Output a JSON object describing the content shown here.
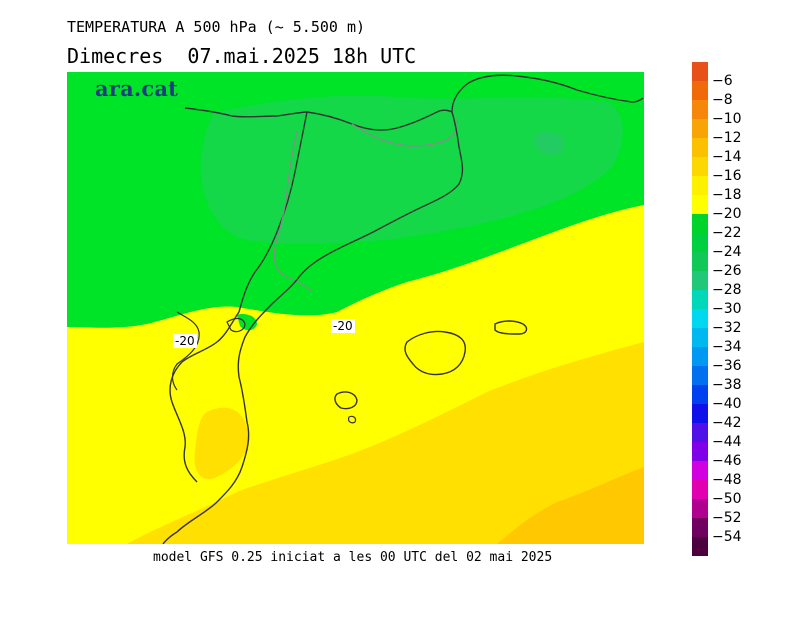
{
  "header": {
    "title": "TEMPERATURA A 500 hPa (~ 5.500 m)",
    "subtitle": "Dimecres  07.mai.2025 18h UTC"
  },
  "map": {
    "logo": "ara.cat",
    "contour_labels": [
      "-20",
      "-20"
    ]
  },
  "footer": {
    "text": "model GFS 0.25 iniciat a les 00 UTC del 02 mai 2025"
  },
  "legend": {
    "labels": [
      "−6",
      "−8",
      "−10",
      "−12",
      "−14",
      "−16",
      "−18",
      "−20",
      "−22",
      "−24",
      "−26",
      "−28",
      "−30",
      "−32",
      "−34",
      "−36",
      "−38",
      "−40",
      "−42",
      "−44",
      "−46",
      "−48",
      "−50",
      "−52",
      "−54"
    ],
    "colors": [
      "#e8501a",
      "#f06a0a",
      "#f5870a",
      "#f9a406",
      "#fbc000",
      "#fcd800",
      "#fdf000",
      "#ffff00",
      "#00d428",
      "#00d040",
      "#10c858",
      "#20c878",
      "#00d8b8",
      "#00d8f0",
      "#00b8f0",
      "#0098f0",
      "#0070f0",
      "#0040f0",
      "#1010e8",
      "#5010e8",
      "#8000e8",
      "#d000e0",
      "#e000b0",
      "#b00090",
      "#700060",
      "#4c0040"
    ]
  }
}
